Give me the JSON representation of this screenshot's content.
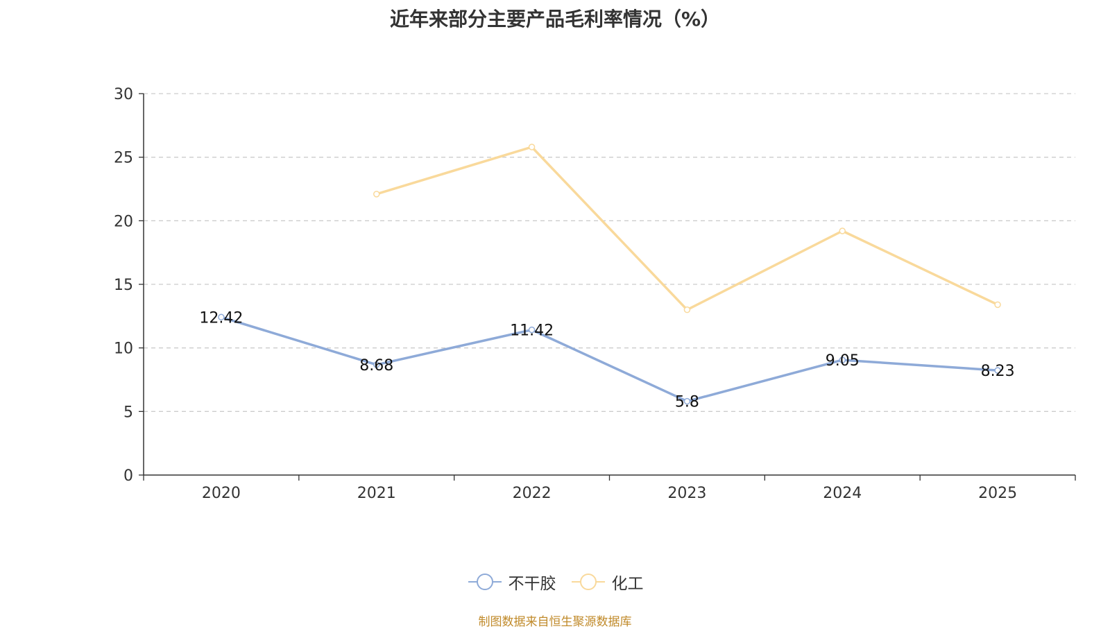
{
  "chart_data": {
    "type": "line",
    "title": "近年来部分主要产品毛利率情况（%）",
    "categories": [
      "2020",
      "2021",
      "2022",
      "2023",
      "2024",
      "2025"
    ],
    "ylim": [
      0,
      30
    ],
    "yticks": [
      0,
      5,
      10,
      15,
      20,
      25,
      30
    ],
    "grid": true,
    "xlabel": "",
    "ylabel": "",
    "legend_position": "bottom",
    "series": [
      {
        "name": "不干胶",
        "color": "#8eaad8",
        "values": [
          12.42,
          8.68,
          11.42,
          5.8,
          9.05,
          8.23
        ],
        "labels": [
          "12.42",
          "8.68",
          "11.42",
          "5.8",
          "9.05",
          "8.23"
        ],
        "show_labels": true
      },
      {
        "name": "化工",
        "color": "#f9d99b",
        "values": [
          null,
          22.1,
          25.8,
          13.0,
          19.2,
          13.4
        ],
        "show_labels": false
      }
    ]
  },
  "footer": {
    "source": "制图数据来自恒生聚源数据库"
  }
}
